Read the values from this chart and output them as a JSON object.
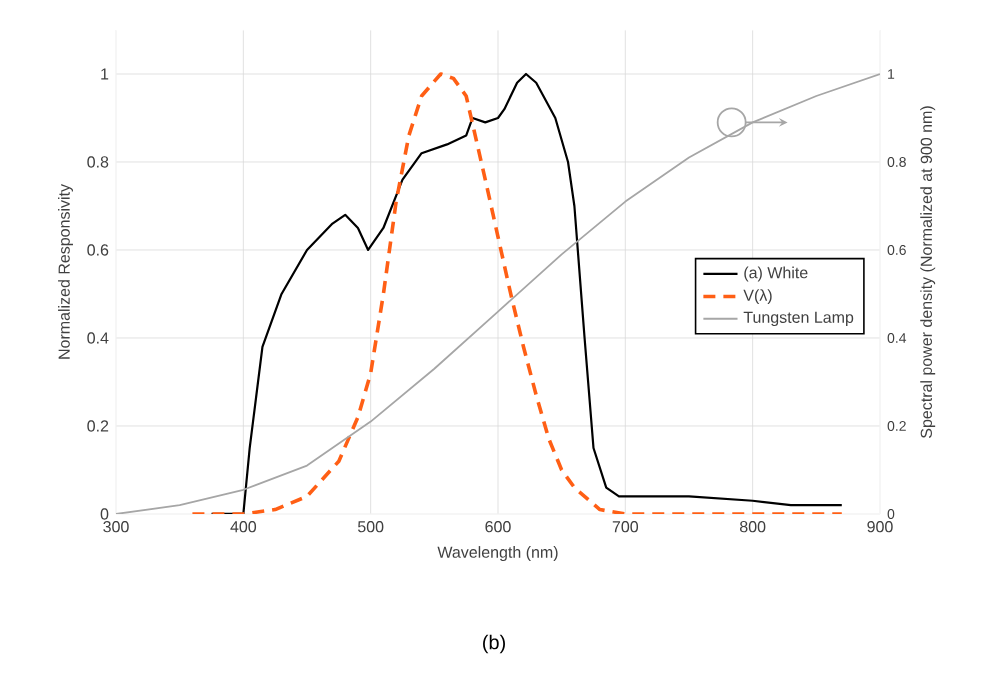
{
  "chart_data": {
    "type": "line",
    "xlabel": "Wavelength (nm)",
    "ylabel": "Normalized Responsivity",
    "y2label": "Spectral power density (Normalized at 900 nm)",
    "xlim": [
      300,
      900
    ],
    "xticks": [
      300,
      400,
      500,
      600,
      700,
      800,
      900
    ],
    "ylim": [
      0,
      1.1
    ],
    "yticks": [
      0,
      0.2,
      0.4,
      0.6,
      0.8,
      1
    ],
    "y2lim": [
      0,
      1.1
    ],
    "y2ticks": [
      0,
      0.2,
      0.4,
      0.6,
      0.8,
      1
    ],
    "grid": true,
    "legend": "right",
    "annotations": [
      "(b)"
    ],
    "series": [
      {
        "name": "(a) White",
        "color": "#000000",
        "line_style": "solid",
        "x": [
          375,
          400,
          405,
          415,
          430,
          450,
          470,
          480,
          490,
          498,
          510,
          525,
          540,
          560,
          575,
          580,
          590,
          600,
          605,
          615,
          622,
          630,
          645,
          655,
          660,
          668,
          675,
          685,
          695,
          750,
          800,
          830,
          870
        ],
        "values": [
          0,
          0,
          0.15,
          0.38,
          0.5,
          0.6,
          0.66,
          0.68,
          0.65,
          0.6,
          0.65,
          0.76,
          0.82,
          0.84,
          0.86,
          0.9,
          0.89,
          0.9,
          0.92,
          0.98,
          1.0,
          0.98,
          0.9,
          0.8,
          0.7,
          0.4,
          0.15,
          0.06,
          0.04,
          0.04,
          0.03,
          0.02,
          0.02
        ]
      },
      {
        "name": "V(λ)",
        "color": "#ff5f15",
        "line_style": "dashed",
        "x": [
          360,
          400,
          425,
          450,
          475,
          490,
          500,
          510,
          520,
          530,
          540,
          555,
          565,
          575,
          590,
          600,
          610,
          620,
          630,
          640,
          650,
          660,
          680,
          700,
          870
        ],
        "values": [
          0,
          0,
          0.01,
          0.04,
          0.12,
          0.22,
          0.32,
          0.5,
          0.71,
          0.86,
          0.95,
          1.0,
          0.99,
          0.95,
          0.76,
          0.63,
          0.5,
          0.38,
          0.27,
          0.17,
          0.1,
          0.06,
          0.01,
          0,
          0
        ]
      },
      {
        "name": "Tungsten Lamp",
        "color": "#a6a6a6",
        "line_style": "solid",
        "axis": "y2",
        "x": [
          300,
          350,
          400,
          450,
          500,
          550,
          600,
          650,
          700,
          750,
          800,
          850,
          900
        ],
        "values": [
          0,
          0.02,
          0.055,
          0.11,
          0.21,
          0.33,
          0.46,
          0.59,
          0.71,
          0.81,
          0.89,
          0.95,
          1.0
        ]
      }
    ]
  }
}
